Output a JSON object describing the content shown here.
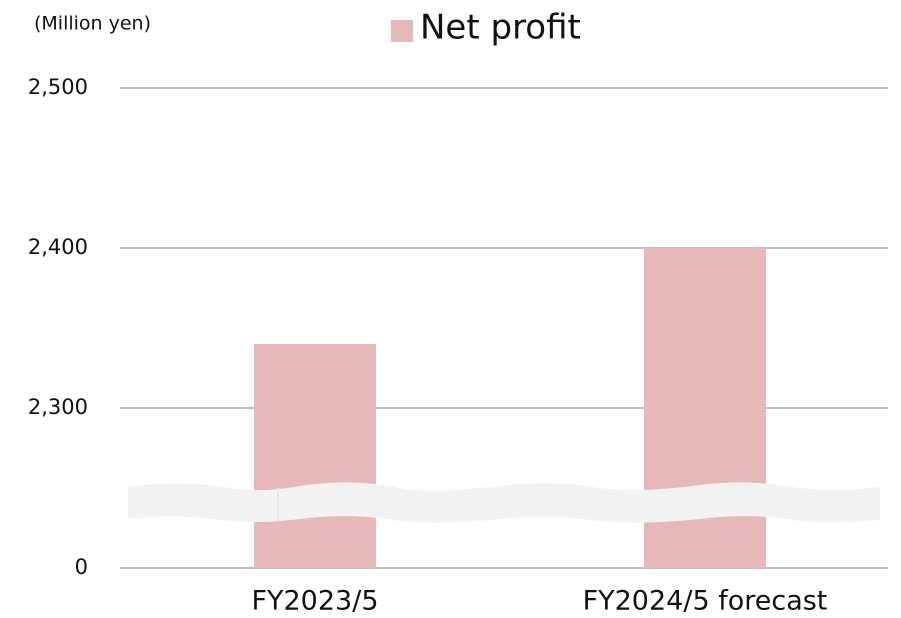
{
  "chart_data": {
    "type": "bar",
    "y_axis_label": "(Million yen)",
    "categories": [
      "FY2023/5",
      "FY2024/5 forecast"
    ],
    "series": [
      {
        "name": "Net profit",
        "color": "#e6b8b7",
        "values": [
          2340,
          2400
        ]
      }
    ],
    "ylim": [
      0,
      2500
    ],
    "yticks": [
      0,
      {
        "value": 2300,
        "label": "2,300"
      },
      {
        "value": 2400,
        "label": "2,400"
      },
      {
        "value": 2500,
        "label": "2,500"
      }
    ],
    "grid": true
  }
}
